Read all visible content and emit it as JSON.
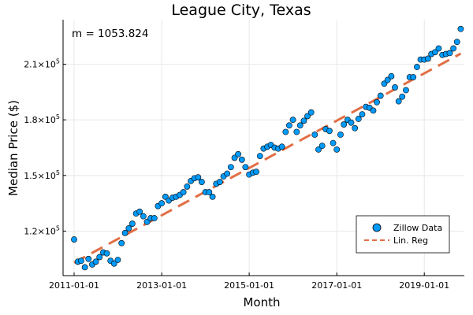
{
  "chart_data": {
    "type": "scatter",
    "title": "League City, Texas",
    "xlabel": "Month",
    "ylabel": "Median Price ($)",
    "annotation": "m = 1053.824",
    "x_start": "2011-01-01",
    "x_step": "month",
    "xlim": [
      "2010-10-01",
      "2019-12-01"
    ],
    "ylim": [
      96000,
      234000
    ],
    "x_ticks": [
      "2011-01-01",
      "2013-01-01",
      "2015-01-01",
      "2017-01-01",
      "2019-01-01"
    ],
    "y_ticks": [
      {
        "value": 120000,
        "mantissa": "1.2",
        "exp": "5"
      },
      {
        "value": 150000,
        "mantissa": "1.5",
        "exp": "5"
      },
      {
        "value": 180000,
        "mantissa": "1.8",
        "exp": "5"
      },
      {
        "value": 210000,
        "mantissa": "2.1",
        "exp": "5"
      }
    ],
    "grid": true,
    "legend_position": "bottom-right",
    "series": [
      {
        "name": "Zillow Data",
        "kind": "scatter",
        "color": "#009AFA",
        "values": [
          115500,
          103500,
          104000,
          100500,
          105000,
          102000,
          103500,
          106000,
          108500,
          108000,
          104000,
          102500,
          104500,
          113500,
          119000,
          121500,
          124000,
          129500,
          130500,
          128000,
          125000,
          127000,
          127000,
          133500,
          135000,
          138500,
          136500,
          138000,
          138500,
          139500,
          141000,
          144000,
          147000,
          148500,
          149000,
          146500,
          141000,
          141000,
          138500,
          145500,
          146500,
          149500,
          151000,
          154500,
          159500,
          161500,
          158500,
          154500,
          150500,
          151500,
          152000,
          160500,
          164500,
          165500,
          166500,
          165000,
          164500,
          165500,
          173500,
          177000,
          180000,
          173500,
          177000,
          179500,
          182000,
          184000,
          172000,
          164000,
          166000,
          175000,
          174000,
          167500,
          164000,
          172000,
          177500,
          180000,
          178500,
          175500,
          180500,
          183000,
          187000,
          186500,
          185000,
          189500,
          193000,
          199500,
          201500,
          203500,
          197500,
          190000,
          192500,
          196000,
          203000,
          203000,
          208500,
          212500,
          212500,
          213000,
          215500,
          216500,
          218500,
          215000,
          215500,
          216000,
          218500,
          222000,
          229000
        ]
      },
      {
        "name": "Lin. Reg",
        "kind": "line",
        "color": "#E26F46",
        "dashed": true,
        "slope_per_month": 1053.824,
        "start": {
          "x": "2011-01-01",
          "y": 103000
        },
        "end": {
          "x": "2019-11-01",
          "y": 215700
        }
      }
    ]
  }
}
